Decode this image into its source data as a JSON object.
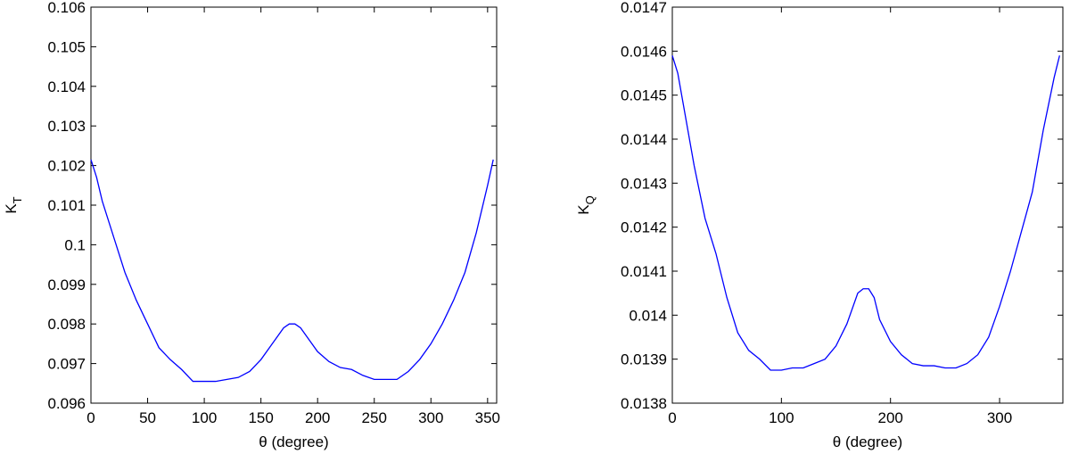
{
  "chart_data": [
    {
      "type": "line",
      "ylabel": "K",
      "ylabel_sub": "T",
      "xlabel": "θ (degree)",
      "xlim": [
        0,
        358
      ],
      "xticks": [
        0,
        50,
        100,
        150,
        200,
        250,
        300,
        350
      ],
      "ylim": [
        0.096,
        0.106
      ],
      "yticks": [
        0.096,
        0.097,
        0.098,
        0.099,
        0.1,
        0.101,
        0.102,
        0.103,
        0.104,
        0.105,
        0.106
      ],
      "x": [
        0,
        5,
        10,
        20,
        30,
        40,
        50,
        60,
        70,
        80,
        90,
        100,
        110,
        120,
        130,
        140,
        150,
        160,
        170,
        175,
        180,
        185,
        190,
        200,
        210,
        220,
        230,
        240,
        250,
        260,
        270,
        280,
        290,
        300,
        310,
        320,
        330,
        340,
        350,
        355
      ],
      "series": [
        {
          "color": "#0000ff",
          "values": [
            0.10215,
            0.1017,
            0.1011,
            0.1002,
            0.0993,
            0.0986,
            0.098,
            0.0974,
            0.0971,
            0.09685,
            0.09655,
            0.09655,
            0.09655,
            0.0966,
            0.09665,
            0.0968,
            0.0971,
            0.0975,
            0.0979,
            0.098,
            0.098,
            0.0979,
            0.0977,
            0.0973,
            0.09705,
            0.0969,
            0.09685,
            0.0967,
            0.0966,
            0.0966,
            0.0966,
            0.0968,
            0.0971,
            0.0975,
            0.098,
            0.0986,
            0.0993,
            0.1003,
            0.1015,
            0.10215
          ]
        }
      ]
    },
    {
      "type": "line",
      "ylabel": "K",
      "ylabel_sub": "Q",
      "xlabel": "θ (degree)",
      "xlim": [
        0,
        358
      ],
      "xticks": [
        0,
        100,
        200,
        300
      ],
      "ylim": [
        0.0138,
        0.0147
      ],
      "yticks": [
        0.0138,
        0.0139,
        0.014,
        0.0141,
        0.0142,
        0.0143,
        0.0144,
        0.0145,
        0.0146,
        0.0147
      ],
      "x": [
        0,
        5,
        10,
        20,
        30,
        40,
        50,
        60,
        70,
        80,
        90,
        100,
        110,
        120,
        130,
        140,
        150,
        160,
        170,
        175,
        180,
        185,
        190,
        200,
        210,
        220,
        230,
        240,
        250,
        260,
        270,
        280,
        290,
        300,
        310,
        320,
        330,
        340,
        350,
        355
      ],
      "series": [
        {
          "color": "#0000ff",
          "values": [
            0.01459,
            0.01455,
            0.01448,
            0.01434,
            0.01422,
            0.01414,
            0.01404,
            0.01396,
            0.01392,
            0.0139,
            0.013875,
            0.013875,
            0.01388,
            0.01388,
            0.01389,
            0.0139,
            0.01393,
            0.01398,
            0.01405,
            0.01406,
            0.01406,
            0.01404,
            0.01399,
            0.01394,
            0.01391,
            0.01389,
            0.013885,
            0.013885,
            0.01388,
            0.01388,
            0.01389,
            0.01391,
            0.01395,
            0.01402,
            0.0141,
            0.01419,
            0.01428,
            0.01442,
            0.01454,
            0.01459
          ]
        }
      ]
    }
  ]
}
